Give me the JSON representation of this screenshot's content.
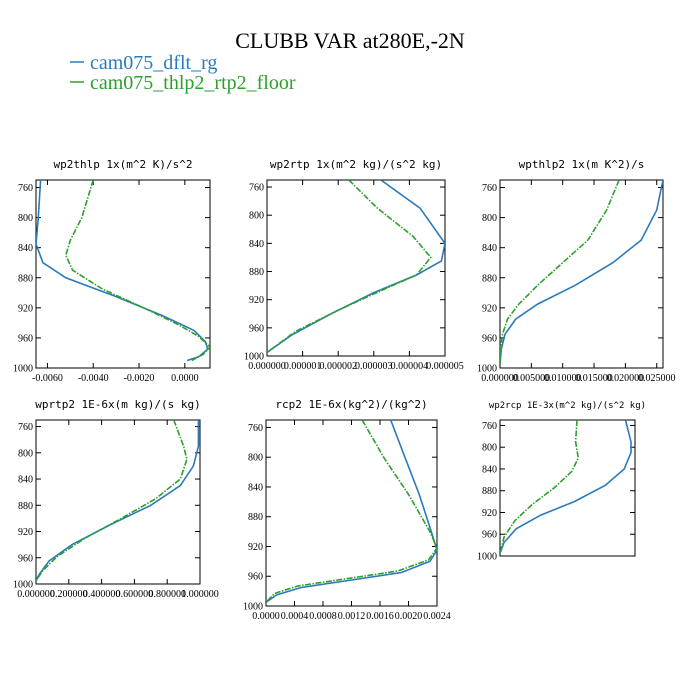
{
  "figure": {
    "title": "CLUBB VAR at280E,-2N",
    "legend": [
      {
        "label": "cam075_dflt_rg",
        "color": "#2b7bba"
      },
      {
        "label": "cam075_thlp2_rtp2_floor",
        "color": "#2ca02c"
      }
    ]
  },
  "chart_data": [
    {
      "type": "line",
      "title": "wp2thlp   1x(m^2 K)/s^2",
      "ylim": [
        1000,
        750
      ],
      "xlim": [
        -0.0065,
        0.0011
      ],
      "yticks": [
        "760",
        "800",
        "840",
        "880",
        "920",
        "960",
        "1000"
      ],
      "ytick_values": [
        760,
        800,
        840,
        880,
        920,
        960,
        1000
      ],
      "xticks": [
        "-0.0060",
        "-0.0040",
        "-0.0020",
        "0.0000"
      ],
      "xtick_values": [
        -0.006,
        -0.004,
        -0.002,
        0.0
      ],
      "series": [
        {
          "name": "cam075_dflt_rg",
          "points": [
            [
              -0.0063,
              750
            ],
            [
              -0.0064,
              800
            ],
            [
              -0.0065,
              835
            ],
            [
              -0.0062,
              860
            ],
            [
              -0.0052,
              880
            ],
            [
              -0.003,
              905
            ],
            [
              -0.001,
              930
            ],
            [
              0.0004,
              950
            ],
            [
              0.0009,
              965
            ],
            [
              0.001,
              975
            ],
            [
              0.0006,
              985
            ],
            [
              0.0001,
              990
            ]
          ]
        },
        {
          "name": "cam075_thlp2_rtp2_floor",
          "points": [
            [
              -0.004,
              750
            ],
            [
              -0.0045,
              800
            ],
            [
              -0.005,
              830
            ],
            [
              -0.0052,
              850
            ],
            [
              -0.0049,
              870
            ],
            [
              -0.0036,
              895
            ],
            [
              -0.0018,
              920
            ],
            [
              -0.0003,
              942
            ],
            [
              0.0006,
              958
            ],
            [
              0.0011,
              972
            ],
            [
              0.0008,
              982
            ],
            [
              0.0003,
              990
            ]
          ]
        }
      ]
    },
    {
      "type": "line",
      "title": "wp2rtp   1x(m^2 kg)/(s^2 kg)",
      "ylim": [
        1000,
        750
      ],
      "xlim": [
        0.0,
        5e-06
      ],
      "yticks": [
        "760",
        "800",
        "840",
        "880",
        "920",
        "960",
        "1000"
      ],
      "ytick_values": [
        760,
        800,
        840,
        880,
        920,
        960,
        1000
      ],
      "xticks": [
        "0.000000",
        "0.000001",
        "0.000002",
        "0.000003",
        "0.000004",
        "0.000005"
      ],
      "xtick_values": [
        0.0,
        1e-06,
        2e-06,
        3e-06,
        4e-06,
        5e-06
      ],
      "series": [
        {
          "name": "cam075_dflt_rg",
          "points": [
            [
              3.2e-06,
              750
            ],
            [
              4.3e-06,
              790
            ],
            [
              5e-06,
              840
            ],
            [
              4.9e-06,
              865
            ],
            [
              4.2e-06,
              885
            ],
            [
              3e-06,
              910
            ],
            [
              1.8e-06,
              940
            ],
            [
              7e-07,
              970
            ],
            [
              0.0,
              995
            ]
          ]
        },
        {
          "name": "cam075_thlp2_rtp2_floor",
          "points": [
            [
              2.3e-06,
              750
            ],
            [
              3.1e-06,
              790
            ],
            [
              4.1e-06,
              830
            ],
            [
              4.6e-06,
              860
            ],
            [
              4.2e-06,
              885
            ],
            [
              3.3e-06,
              905
            ],
            [
              2e-06,
              935
            ],
            [
              8e-07,
              965
            ],
            [
              0.0,
              995
            ]
          ]
        }
      ]
    },
    {
      "type": "line",
      "title": "wpthlp2   1x(m K^2)/s",
      "ylim": [
        1000,
        750
      ],
      "xlim": [
        0.0,
        0.026
      ],
      "yticks": [
        "760",
        "800",
        "840",
        "880",
        "920",
        "960",
        "1000"
      ],
      "ytick_values": [
        760,
        800,
        840,
        880,
        920,
        960,
        1000
      ],
      "xticks": [
        "0.000000",
        "0.005000",
        "0.010000",
        "0.015000",
        "0.020000",
        "0.025000"
      ],
      "xtick_values": [
        0.0,
        0.005,
        0.01,
        0.015,
        0.02,
        0.025
      ],
      "series": [
        {
          "name": "cam075_dflt_rg",
          "points": [
            [
              0.026,
              750
            ],
            [
              0.025,
              790
            ],
            [
              0.0225,
              830
            ],
            [
              0.018,
              860
            ],
            [
              0.012,
              890
            ],
            [
              0.006,
              915
            ],
            [
              0.0025,
              935
            ],
            [
              0.0008,
              955
            ],
            [
              0.0002,
              975
            ],
            [
              0.0,
              995
            ]
          ]
        },
        {
          "name": "cam075_thlp2_rtp2_floor",
          "points": [
            [
              0.019,
              750
            ],
            [
              0.017,
              790
            ],
            [
              0.014,
              830
            ],
            [
              0.01,
              860
            ],
            [
              0.006,
              890
            ],
            [
              0.003,
              915
            ],
            [
              0.0012,
              935
            ],
            [
              0.0004,
              955
            ],
            [
              0.0001,
              975
            ],
            [
              0.0,
              995
            ]
          ]
        }
      ]
    },
    {
      "type": "line",
      "title": "wprtp2   1E-6x(m kg)/(s kg)",
      "ylim": [
        1000,
        750
      ],
      "xlim": [
        0.0,
        1.0
      ],
      "yticks": [
        "760",
        "800",
        "840",
        "880",
        "920",
        "960",
        "1000"
      ],
      "ytick_values": [
        760,
        800,
        840,
        880,
        920,
        960,
        1000
      ],
      "xticks": [
        "0.000000",
        "0.200000",
        "0.400000",
        "0.600000",
        "0.800000",
        "1.000000"
      ],
      "xtick_values": [
        0.0,
        0.2,
        0.4,
        0.6,
        0.8,
        1.0
      ],
      "series": [
        {
          "name": "cam075_dflt_rg",
          "points": [
            [
              0.99,
              750
            ],
            [
              0.99,
              790
            ],
            [
              0.96,
              820
            ],
            [
              0.88,
              850
            ],
            [
              0.7,
              880
            ],
            [
              0.45,
              910
            ],
            [
              0.22,
              940
            ],
            [
              0.08,
              965
            ],
            [
              0.02,
              985
            ],
            [
              0.0,
              995
            ]
          ]
        },
        {
          "name": "cam075_thlp2_rtp2_floor",
          "points": [
            [
              0.84,
              750
            ],
            [
              0.9,
              790
            ],
            [
              0.92,
              810
            ],
            [
              0.88,
              840
            ],
            [
              0.73,
              870
            ],
            [
              0.52,
              900
            ],
            [
              0.3,
              930
            ],
            [
              0.13,
              958
            ],
            [
              0.04,
              980
            ],
            [
              0.0,
              995
            ]
          ]
        }
      ]
    },
    {
      "type": "line",
      "title": "rcp2   1E-6x(kg^2)/(kg^2)",
      "ylim": [
        1000,
        750
      ],
      "xlim": [
        0.0,
        0.0024
      ],
      "yticks": [
        "760",
        "800",
        "840",
        "880",
        "920",
        "960",
        "1000"
      ],
      "ytick_values": [
        760,
        800,
        840,
        880,
        920,
        960,
        1000
      ],
      "xticks": [
        "0.0000",
        "0.0004",
        "0.0008",
        "0.0012",
        "0.0016",
        "0.0020",
        "0.0024"
      ],
      "xtick_values": [
        0.0,
        0.0004,
        0.0008,
        0.0012,
        0.0016,
        0.002,
        0.0024
      ],
      "series": [
        {
          "name": "cam075_dflt_rg",
          "points": [
            [
              0.00175,
              750
            ],
            [
              0.00195,
              800
            ],
            [
              0.00215,
              850
            ],
            [
              0.00232,
              900
            ],
            [
              0.0024,
              925
            ],
            [
              0.0023,
              940
            ],
            [
              0.0019,
              955
            ],
            [
              0.0012,
              965
            ],
            [
              0.0005,
              975
            ],
            [
              0.00015,
              985
            ],
            [
              0.0,
              995
            ]
          ]
        },
        {
          "name": "cam075_thlp2_rtp2_floor",
          "points": [
            [
              0.00135,
              750
            ],
            [
              0.00165,
              800
            ],
            [
              0.002,
              850
            ],
            [
              0.0023,
              900
            ],
            [
              0.0024,
              922
            ],
            [
              0.00228,
              938
            ],
            [
              0.00185,
              953
            ],
            [
              0.00115,
              963
            ],
            [
              0.00045,
              973
            ],
            [
              0.00012,
              983
            ],
            [
              0.0,
              995
            ]
          ]
        }
      ]
    },
    {
      "type": "line",
      "title": "wp2rcp   1E-3x(m^2 kg)/(s^2 kg)",
      "ylim": [
        1000,
        750
      ],
      "xlim": [
        0.0,
        1.0
      ],
      "yticks": [
        "760",
        "800",
        "840",
        "880",
        "920",
        "960",
        "1000"
      ],
      "ytick_values": [
        760,
        800,
        840,
        880,
        920,
        960,
        1000
      ],
      "xticks": [],
      "xtick_values": [],
      "series": [
        {
          "name": "cam075_dflt_rg",
          "points": [
            [
              0.93,
              750
            ],
            [
              0.97,
              790
            ],
            [
              0.97,
              810
            ],
            [
              0.92,
              840
            ],
            [
              0.78,
              870
            ],
            [
              0.55,
              900
            ],
            [
              0.3,
              925
            ],
            [
              0.12,
              950
            ],
            [
              0.03,
              975
            ],
            [
              0.0,
              995
            ]
          ]
        },
        {
          "name": "cam075_thlp2_rtp2_floor",
          "points": [
            [
              0.57,
              750
            ],
            [
              0.56,
              790
            ],
            [
              0.58,
              820
            ],
            [
              0.53,
              845
            ],
            [
              0.4,
              875
            ],
            [
              0.24,
              905
            ],
            [
              0.11,
              935
            ],
            [
              0.03,
              965
            ],
            [
              0.0,
              995
            ]
          ]
        }
      ]
    }
  ]
}
